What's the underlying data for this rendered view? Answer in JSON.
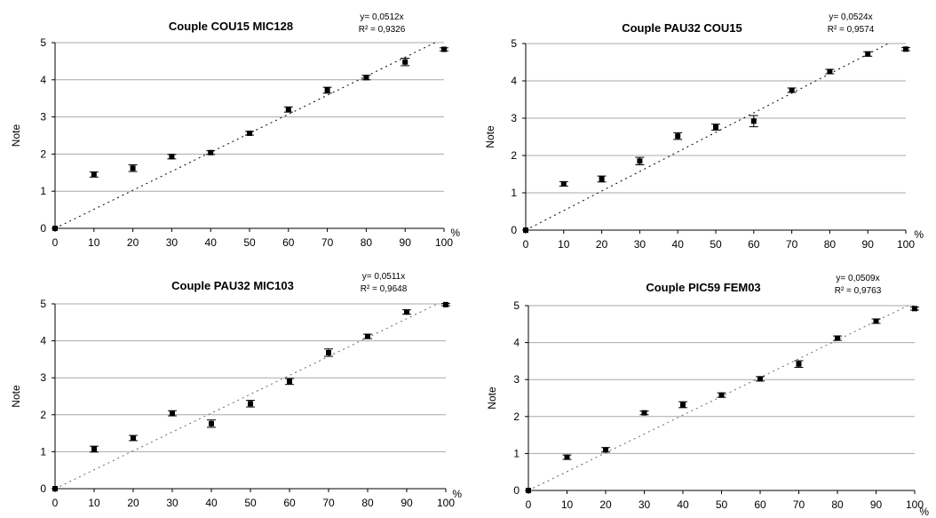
{
  "chart_data": [
    {
      "type": "scatter",
      "title": "Couple COU15 MIC128",
      "equation": "y= 0,0512x",
      "r2_label": "R² = 0,9326",
      "ylabel": "Note",
      "xunit": "%",
      "xlim": [
        0,
        100
      ],
      "ylim": [
        0,
        5
      ],
      "xticks": [
        "0",
        "10",
        "20",
        "30",
        "40",
        "50",
        "60",
        "70",
        "80",
        "90",
        "100"
      ],
      "yticks": [
        "0",
        "1",
        "2",
        "3",
        "4",
        "5"
      ],
      "trend_slope": 0.0512,
      "grid": "horizontal",
      "points": [
        {
          "x": 0,
          "y": 0,
          "err": 0
        },
        {
          "x": 10,
          "y": 1.45,
          "err": 0.07
        },
        {
          "x": 20,
          "y": 1.62,
          "err": 0.09
        },
        {
          "x": 30,
          "y": 1.93,
          "err": 0.06
        },
        {
          "x": 40,
          "y": 2.04,
          "err": 0.05
        },
        {
          "x": 50,
          "y": 2.56,
          "err": 0.05
        },
        {
          "x": 60,
          "y": 3.2,
          "err": 0.07
        },
        {
          "x": 70,
          "y": 3.72,
          "err": 0.08
        },
        {
          "x": 80,
          "y": 4.06,
          "err": 0.06
        },
        {
          "x": 90,
          "y": 4.48,
          "err": 0.1
        },
        {
          "x": 100,
          "y": 4.82,
          "err": 0.04
        }
      ]
    },
    {
      "type": "scatter",
      "title": "Couple PAU32 COU15",
      "equation": "y= 0,0524x",
      "r2_label": "R² = 0,9574",
      "ylabel": "Note",
      "xunit": "%",
      "xlim": [
        0,
        100
      ],
      "ylim": [
        0,
        5
      ],
      "xticks": [
        "0",
        "10",
        "20",
        "30",
        "40",
        "50",
        "60",
        "70",
        "80",
        "90",
        "100"
      ],
      "yticks": [
        "0",
        "1",
        "2",
        "3",
        "4",
        "5"
      ],
      "trend_slope": 0.0524,
      "grid": "horizontal",
      "points": [
        {
          "x": 0,
          "y": 0,
          "err": 0
        },
        {
          "x": 10,
          "y": 1.24,
          "err": 0.06
        },
        {
          "x": 20,
          "y": 1.37,
          "err": 0.08
        },
        {
          "x": 30,
          "y": 1.85,
          "err": 0.1
        },
        {
          "x": 40,
          "y": 2.52,
          "err": 0.09
        },
        {
          "x": 50,
          "y": 2.76,
          "err": 0.08
        },
        {
          "x": 60,
          "y": 2.92,
          "err": 0.15
        },
        {
          "x": 70,
          "y": 3.75,
          "err": 0.06
        },
        {
          "x": 80,
          "y": 4.25,
          "err": 0.06
        },
        {
          "x": 90,
          "y": 4.72,
          "err": 0.06
        },
        {
          "x": 100,
          "y": 4.85,
          "err": 0.04
        }
      ]
    },
    {
      "type": "scatter",
      "title": "Couple PAU32 MIC103",
      "equation": "y= 0,0511x",
      "r2_label": "R² = 0,9648",
      "ylabel": "Note",
      "xunit": "%",
      "xlim": [
        0,
        100
      ],
      "ylim": [
        0,
        5
      ],
      "xticks": [
        "0",
        "10",
        "20",
        "30",
        "40",
        "50",
        "60",
        "70",
        "80",
        "90",
        "100"
      ],
      "yticks": [
        "0",
        "1",
        "2",
        "3",
        "4",
        "5"
      ],
      "trend_slope": 0.0511,
      "grid": "horizontal",
      "points": [
        {
          "x": 0,
          "y": 0,
          "err": 0
        },
        {
          "x": 10,
          "y": 1.07,
          "err": 0.08
        },
        {
          "x": 20,
          "y": 1.37,
          "err": 0.07
        },
        {
          "x": 30,
          "y": 2.04,
          "err": 0.07
        },
        {
          "x": 40,
          "y": 1.76,
          "err": 0.1
        },
        {
          "x": 50,
          "y": 2.3,
          "err": 0.09
        },
        {
          "x": 60,
          "y": 2.9,
          "err": 0.08
        },
        {
          "x": 70,
          "y": 3.68,
          "err": 0.1
        },
        {
          "x": 80,
          "y": 4.12,
          "err": 0.06
        },
        {
          "x": 90,
          "y": 4.78,
          "err": 0.06
        },
        {
          "x": 100,
          "y": 4.98,
          "err": 0.03
        }
      ]
    },
    {
      "type": "scatter",
      "title": "Couple PIC59 FEM03",
      "equation": "y= 0,0509x",
      "r2_label": "R² = 0,9763",
      "ylabel": "Note",
      "xunit": "%",
      "xlim": [
        0,
        100
      ],
      "ylim": [
        0,
        5
      ],
      "xticks": [
        "0",
        "10",
        "20",
        "30",
        "40",
        "50",
        "60",
        "70",
        "80",
        "90",
        "100"
      ],
      "yticks": [
        "0",
        "1",
        "2",
        "3",
        "4",
        "5"
      ],
      "trend_slope": 0.0509,
      "grid": "horizontal",
      "points": [
        {
          "x": 0,
          "y": 0,
          "err": 0
        },
        {
          "x": 10,
          "y": 0.9,
          "err": 0.06
        },
        {
          "x": 20,
          "y": 1.1,
          "err": 0.06
        },
        {
          "x": 30,
          "y": 2.1,
          "err": 0.05
        },
        {
          "x": 40,
          "y": 2.32,
          "err": 0.08
        },
        {
          "x": 50,
          "y": 2.58,
          "err": 0.06
        },
        {
          "x": 60,
          "y": 3.02,
          "err": 0.06
        },
        {
          "x": 70,
          "y": 3.42,
          "err": 0.09
        },
        {
          "x": 80,
          "y": 4.12,
          "err": 0.06
        },
        {
          "x": 90,
          "y": 4.58,
          "err": 0.06
        },
        {
          "x": 100,
          "y": 4.92,
          "err": 0.04
        }
      ]
    }
  ]
}
